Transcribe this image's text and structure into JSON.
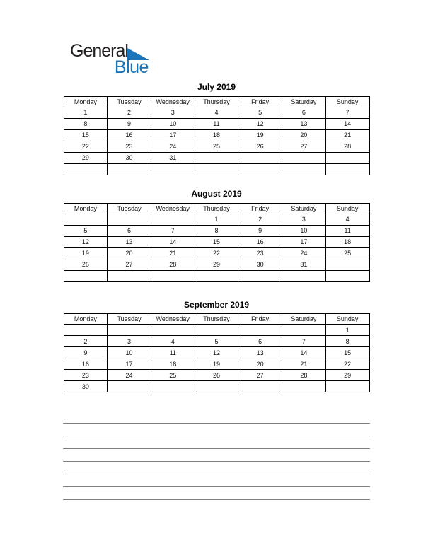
{
  "page": {
    "background": "#ffffff"
  },
  "logo": {
    "text_top": "General",
    "text_bottom": "Blue",
    "text_color": "#231f20",
    "accent_color": "#1b75bb"
  },
  "weekdays": [
    "Monday",
    "Tuesday",
    "Wednesday",
    "Thursday",
    "Friday",
    "Saturday",
    "Sunday"
  ],
  "months": [
    {
      "title": "July 2019",
      "weeks": [
        [
          "1",
          "2",
          "3",
          "4",
          "5",
          "6",
          "7"
        ],
        [
          "8",
          "9",
          "10",
          "11",
          "12",
          "13",
          "14"
        ],
        [
          "15",
          "16",
          "17",
          "18",
          "19",
          "20",
          "21"
        ],
        [
          "22",
          "23",
          "24",
          "25",
          "26",
          "27",
          "28"
        ],
        [
          "29",
          "30",
          "31",
          "",
          "",
          "",
          ""
        ],
        [
          "",
          "",
          "",
          "",
          "",
          "",
          ""
        ]
      ]
    },
    {
      "title": "August 2019",
      "weeks": [
        [
          "",
          "",
          "",
          "1",
          "2",
          "3",
          "4"
        ],
        [
          "5",
          "6",
          "7",
          "8",
          "9",
          "10",
          "11"
        ],
        [
          "12",
          "13",
          "14",
          "15",
          "16",
          "17",
          "18"
        ],
        [
          "19",
          "20",
          "21",
          "22",
          "23",
          "24",
          "25"
        ],
        [
          "26",
          "27",
          "28",
          "29",
          "30",
          "31",
          ""
        ],
        [
          "",
          "",
          "",
          "",
          "",
          "",
          ""
        ]
      ]
    },
    {
      "title": "September 2019",
      "weeks": [
        [
          "",
          "",
          "",
          "",
          "",
          "",
          "1"
        ],
        [
          "2",
          "3",
          "4",
          "5",
          "6",
          "7",
          "8"
        ],
        [
          "9",
          "10",
          "11",
          "12",
          "13",
          "14",
          "15"
        ],
        [
          "16",
          "17",
          "18",
          "19",
          "20",
          "21",
          "22"
        ],
        [
          "23",
          "24",
          "25",
          "26",
          "27",
          "28",
          "29"
        ],
        [
          "30",
          "",
          "",
          "",
          "",
          "",
          ""
        ]
      ]
    }
  ],
  "notes": {
    "line_count": 7,
    "line_color": "#808080"
  },
  "table_style": {
    "border_color": "#000000"
  }
}
